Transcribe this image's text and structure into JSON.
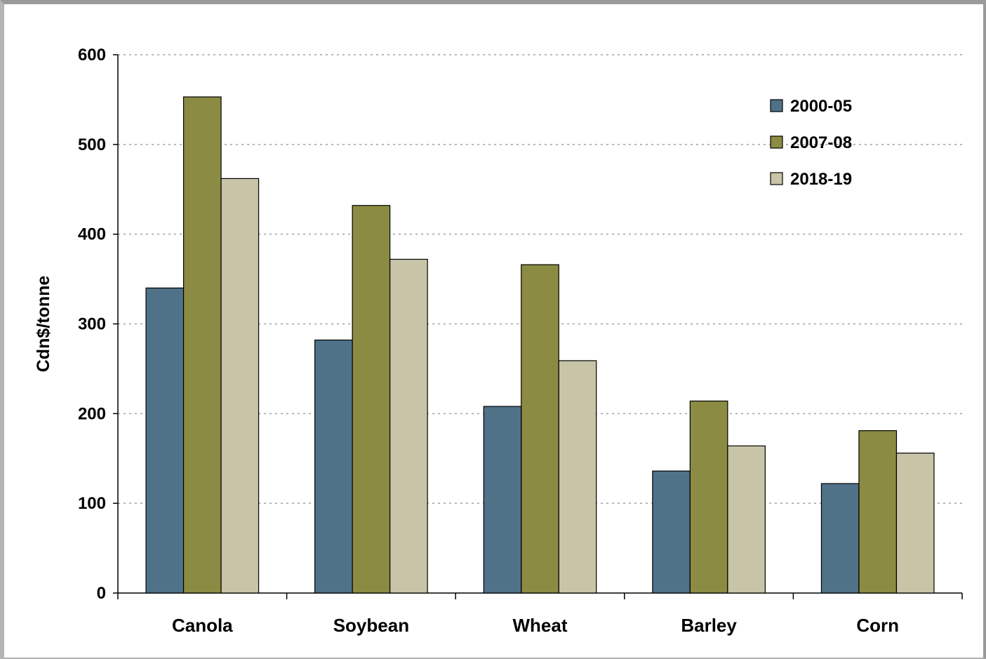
{
  "chart_data": {
    "type": "bar",
    "categories": [
      "Canola",
      "Soybean",
      "Wheat",
      "Barley",
      "Corn"
    ],
    "series": [
      {
        "name": "2000-05",
        "values": [
          340,
          282,
          208,
          136,
          122
        ],
        "color": "#4f7289"
      },
      {
        "name": "2007-08",
        "values": [
          553,
          432,
          366,
          214,
          181
        ],
        "color": "#8b8b43"
      },
      {
        "name": "2018-19",
        "values": [
          462,
          372,
          259,
          164,
          156
        ],
        "color": "#c8c4a8"
      }
    ],
    "title": "",
    "xlabel": "",
    "ylabel": "Cdn$/tonne",
    "ylim": [
      0,
      600
    ],
    "yticks": [
      0,
      100,
      200,
      300,
      400,
      500,
      600
    ],
    "grid": "horizontal dotted",
    "legend_position": "top-right"
  }
}
